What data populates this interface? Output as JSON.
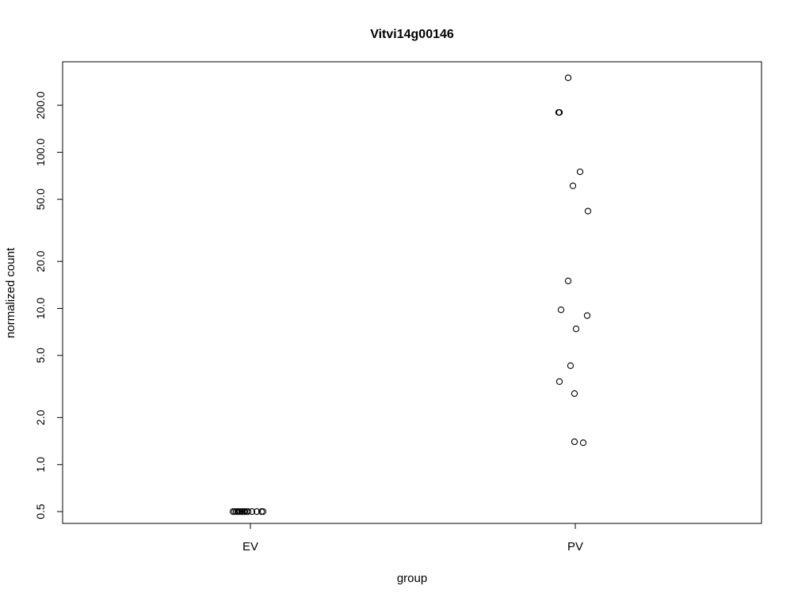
{
  "chart_data": {
    "type": "scatter",
    "title": "Vitvi14g00146",
    "xlabel": "group",
    "ylabel": "normalized count",
    "y_scale": "log",
    "ylim": [
      0.42,
      380
    ],
    "categories": [
      "EV",
      "PV"
    ],
    "y_ticks": [
      0.5,
      1.0,
      2.0,
      5.0,
      10.0,
      20.0,
      50.0,
      100.0,
      200.0
    ],
    "y_tick_labels": [
      "0.5",
      "1.0",
      "2.0",
      "5.0",
      "10.0",
      "20.0",
      "50.0",
      "100.0",
      "200.0"
    ],
    "grid": false,
    "marker": "open-circle",
    "points": [
      {
        "group": "EV",
        "y": 0.5
      },
      {
        "group": "EV",
        "y": 0.5
      },
      {
        "group": "EV",
        "y": 0.5
      },
      {
        "group": "EV",
        "y": 0.5
      },
      {
        "group": "EV",
        "y": 0.5
      },
      {
        "group": "EV",
        "y": 0.5
      },
      {
        "group": "EV",
        "y": 0.5
      },
      {
        "group": "EV",
        "y": 0.5
      },
      {
        "group": "EV",
        "y": 0.5
      },
      {
        "group": "EV",
        "y": 0.5
      },
      {
        "group": "EV",
        "y": 0.5
      },
      {
        "group": "EV",
        "y": 0.5
      },
      {
        "group": "EV",
        "y": 0.5
      },
      {
        "group": "EV",
        "y": 0.5
      },
      {
        "group": "EV",
        "y": 0.5
      },
      {
        "group": "EV",
        "y": 0.5
      },
      {
        "group": "PV",
        "y": 300
      },
      {
        "group": "PV",
        "y": 180
      },
      {
        "group": "PV",
        "y": 180
      },
      {
        "group": "PV",
        "y": 75
      },
      {
        "group": "PV",
        "y": 61
      },
      {
        "group": "PV",
        "y": 42
      },
      {
        "group": "PV",
        "y": 15
      },
      {
        "group": "PV",
        "y": 9.8
      },
      {
        "group": "PV",
        "y": 9.0
      },
      {
        "group": "PV",
        "y": 7.4
      },
      {
        "group": "PV",
        "y": 4.3
      },
      {
        "group": "PV",
        "y": 3.4
      },
      {
        "group": "PV",
        "y": 2.85
      },
      {
        "group": "PV",
        "y": 1.4
      },
      {
        "group": "PV",
        "y": 1.38
      }
    ]
  }
}
